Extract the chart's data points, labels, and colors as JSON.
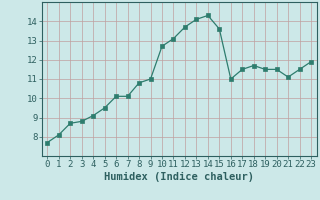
{
  "x": [
    0,
    1,
    2,
    3,
    4,
    5,
    6,
    7,
    8,
    9,
    10,
    11,
    12,
    13,
    14,
    15,
    16,
    17,
    18,
    19,
    20,
    21,
    22,
    23
  ],
  "y": [
    7.7,
    8.1,
    8.7,
    8.8,
    9.1,
    9.5,
    10.1,
    10.1,
    10.8,
    11.0,
    12.7,
    13.1,
    13.7,
    14.1,
    14.3,
    13.6,
    11.0,
    11.5,
    11.7,
    11.5,
    11.5,
    11.1,
    11.5,
    11.9
  ],
  "line_color": "#2e7d6e",
  "marker": "s",
  "marker_size": 2.5,
  "bg_color": "#cce8e8",
  "grid_color": "#c0a0a0",
  "xlabel": "Humidex (Indice chaleur)",
  "xlim": [
    -0.5,
    23.5
  ],
  "ylim": [
    7.0,
    15.0
  ],
  "yticks": [
    8,
    9,
    10,
    11,
    12,
    13,
    14
  ],
  "xticks": [
    0,
    1,
    2,
    3,
    4,
    5,
    6,
    7,
    8,
    9,
    10,
    11,
    12,
    13,
    14,
    15,
    16,
    17,
    18,
    19,
    20,
    21,
    22,
    23
  ],
  "tick_label_color": "#2e6060",
  "axis_color": "#2e6060",
  "font_size": 6.5,
  "xlabel_fontsize": 7.5
}
